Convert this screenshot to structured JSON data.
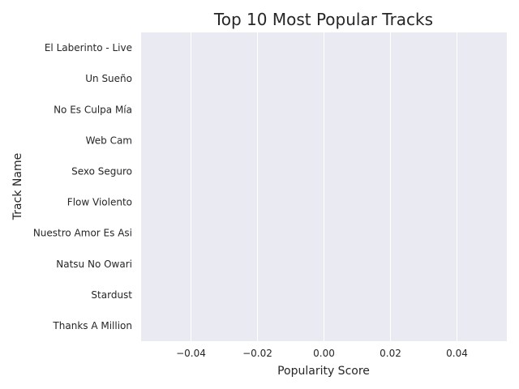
{
  "chart_data": {
    "type": "bar",
    "orientation": "horizontal",
    "title": "Top 10 Most Popular Tracks",
    "xlabel": "Popularity Score",
    "ylabel": "Track Name",
    "categories": [
      "El Laberinto - Live",
      "Un Sueño",
      "No Es Culpa Mía",
      "Web Cam",
      "Sexo Seguro",
      "Flow Violento",
      "Nuestro Amor Es Asi",
      "Natsu No Owari",
      "Stardust",
      "Thanks A Million"
    ],
    "values": [
      0,
      0,
      0,
      0,
      0,
      0,
      0,
      0,
      0,
      0
    ],
    "xlim": [
      -0.055,
      0.055
    ],
    "xticks": [
      -0.04,
      -0.02,
      0.0,
      0.02,
      0.04
    ],
    "xtick_labels": [
      "−0.04",
      "−0.02",
      "0.00",
      "0.02",
      "0.04"
    ],
    "grid": true,
    "grid_axis": "x",
    "plot_background": "#eaeaf2",
    "grid_color": "#ffffff",
    "text_color": "#262626"
  }
}
